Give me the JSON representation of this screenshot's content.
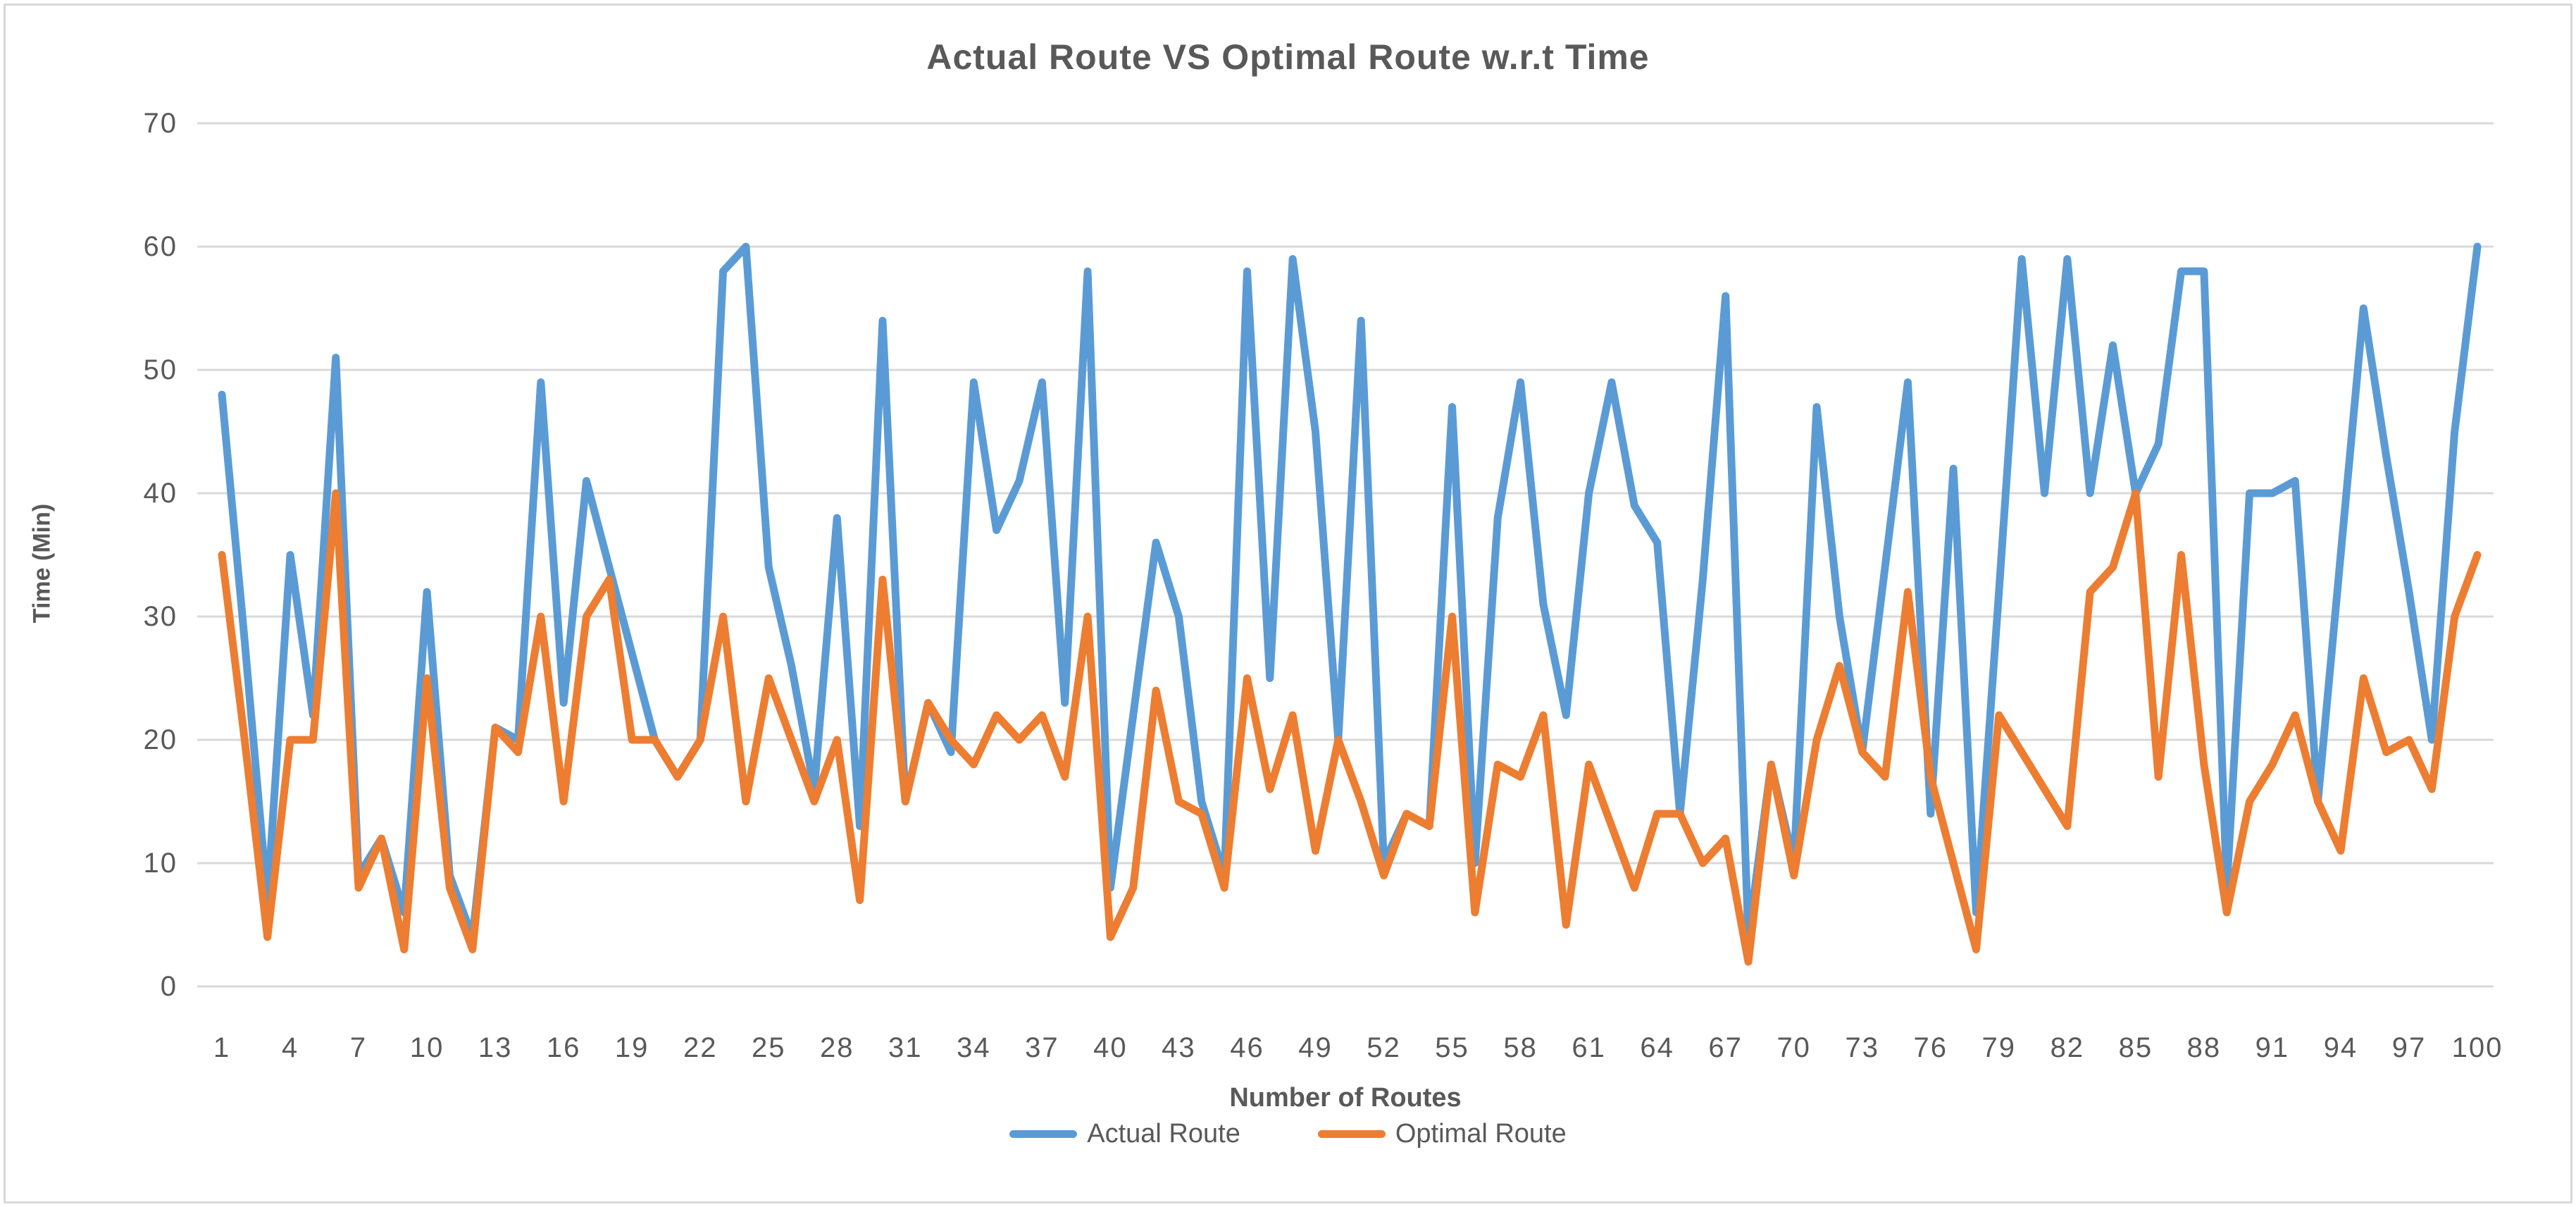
{
  "chart_data": {
    "type": "line",
    "title": "Actual Route VS Optimal Route w.r.t Time",
    "xlabel": "Number of Routes",
    "ylabel": "Time (Min)",
    "ylim": [
      0,
      70
    ],
    "yticks": [
      0,
      10,
      20,
      30,
      40,
      50,
      60,
      70
    ],
    "xticks": [
      1,
      4,
      7,
      10,
      13,
      16,
      19,
      22,
      25,
      28,
      31,
      34,
      37,
      40,
      43,
      46,
      49,
      52,
      55,
      58,
      61,
      64,
      67,
      70,
      73,
      76,
      79,
      82,
      85,
      88,
      91,
      94,
      97,
      100
    ],
    "n_points": 100,
    "grid": true,
    "legend_position": "bottom",
    "colors": {
      "actual": "#5B9BD5",
      "optimal": "#ED7D31",
      "grid": "#D9D9D9",
      "text": "#595959",
      "background": "#FFFFFF"
    },
    "series": [
      {
        "name": "Actual Route",
        "values": [
          48,
          28,
          7,
          35,
          22,
          51,
          9,
          12,
          6,
          32,
          9,
          4,
          21,
          20,
          49,
          23,
          41,
          34,
          27,
          20,
          17,
          20,
          58,
          60,
          34,
          26,
          16,
          38,
          13,
          54,
          15,
          23,
          19,
          49,
          37,
          41,
          49,
          23,
          58,
          8,
          22,
          36,
          30,
          15,
          9,
          58,
          25,
          59,
          45,
          20,
          54,
          10,
          14,
          13,
          47,
          10,
          38,
          49,
          31,
          22,
          40,
          49,
          39,
          36,
          14,
          33,
          56,
          4,
          18,
          10,
          47,
          30,
          19,
          34,
          49,
          14,
          42,
          6,
          32,
          59,
          40,
          59,
          40,
          52,
          40,
          44,
          58,
          58,
          8,
          40,
          40,
          41,
          15,
          35,
          55,
          43,
          32,
          20,
          45,
          60
        ]
      },
      {
        "name": "Optimal Route",
        "values": [
          35,
          20,
          4,
          20,
          20,
          40,
          8,
          12,
          3,
          25,
          8,
          3,
          21,
          19,
          30,
          15,
          30,
          33,
          20,
          20,
          17,
          20,
          30,
          15,
          25,
          20,
          15,
          20,
          7,
          33,
          15,
          23,
          20,
          18,
          22,
          20,
          22,
          17,
          30,
          4,
          8,
          24,
          15,
          14,
          8,
          25,
          16,
          22,
          11,
          20,
          15,
          9,
          14,
          13,
          30,
          6,
          18,
          17,
          22,
          5,
          18,
          13,
          8,
          14,
          14,
          10,
          12,
          2,
          18,
          9,
          20,
          26,
          19,
          17,
          32,
          17,
          10,
          3,
          22,
          19,
          16,
          13,
          32,
          34,
          40,
          17,
          35,
          18,
          6,
          15,
          18,
          22,
          15,
          11,
          25,
          19,
          20,
          16,
          30,
          35
        ]
      }
    ]
  }
}
